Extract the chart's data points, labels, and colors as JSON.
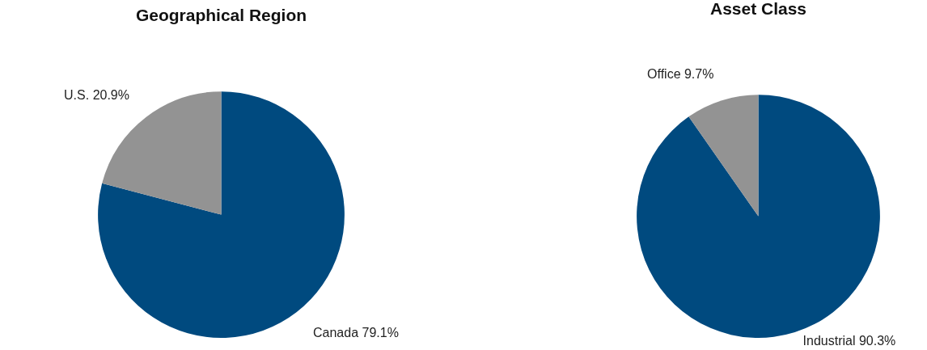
{
  "chart_data": [
    {
      "type": "pie",
      "title": "Geographical Region",
      "categories": [
        "Canada",
        "U.S."
      ],
      "values": [
        79.1,
        20.9
      ],
      "colors": [
        "#004a7f",
        "#939393"
      ],
      "value_labels": [
        "79.1%",
        "20.9%"
      ],
      "legend": false
    },
    {
      "type": "pie",
      "title": "Asset Class",
      "categories": [
        "Industrial",
        "Office"
      ],
      "values": [
        90.3,
        9.7
      ],
      "colors": [
        "#004a7f",
        "#939393"
      ],
      "value_labels": [
        "90.3%",
        "9.7%"
      ],
      "legend": false
    }
  ]
}
